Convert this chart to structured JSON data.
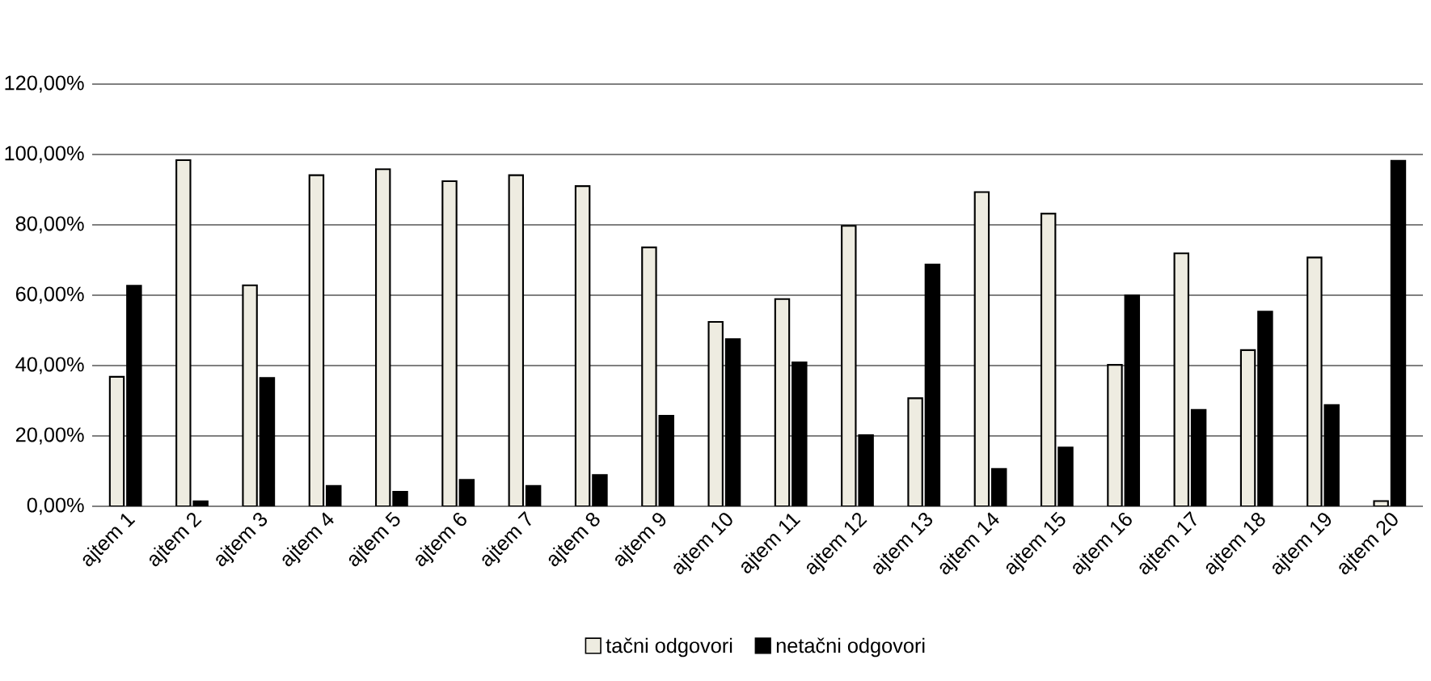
{
  "chart_data": {
    "type": "bar",
    "categories": [
      "ajtem 1",
      "ajtem 2",
      "ajtem 3",
      "ajtem 4",
      "ajtem 5",
      "ajtem 6",
      "ajtem 7",
      "ajtem 8",
      "ajtem 9",
      "ajtem 10",
      "ajtem 11",
      "ajtem 12",
      "ajtem 13",
      "ajtem 14",
      "ajtem 15",
      "ajtem 16",
      "ajtem 17",
      "ajtem 18",
      "ajtem 19",
      "ajtem 20"
    ],
    "series": [
      {
        "name": "tačni odgovori",
        "color": "#eeece1",
        "values": [
          36.8,
          98.4,
          62.8,
          94.1,
          95.8,
          92.4,
          94.1,
          91.0,
          73.6,
          52.4,
          58.9,
          79.7,
          30.7,
          89.3,
          83.2,
          40.2,
          71.9,
          44.4,
          70.7,
          1.5
        ]
      },
      {
        "name": "netačni odgovori",
        "color": "#000000",
        "values": [
          62.7,
          1.4,
          36.5,
          5.8,
          4.1,
          7.5,
          5.8,
          8.9,
          25.7,
          47.5,
          40.9,
          20.2,
          68.7,
          10.6,
          16.7,
          59.9,
          27.4,
          55.3,
          28.8,
          98.2
        ]
      }
    ],
    "ylim": [
      0,
      120
    ],
    "yticks": [
      {
        "value": 0,
        "label": "0,00%"
      },
      {
        "value": 20,
        "label": "20,00%"
      },
      {
        "value": 40,
        "label": "40,00%"
      },
      {
        "value": 60,
        "label": "60,00%"
      },
      {
        "value": 80,
        "label": "80,00%"
      },
      {
        "value": 100,
        "label": "100,00%"
      },
      {
        "value": 120,
        "label": "120,00%"
      }
    ],
    "grid": "y",
    "legend": "bottom"
  }
}
